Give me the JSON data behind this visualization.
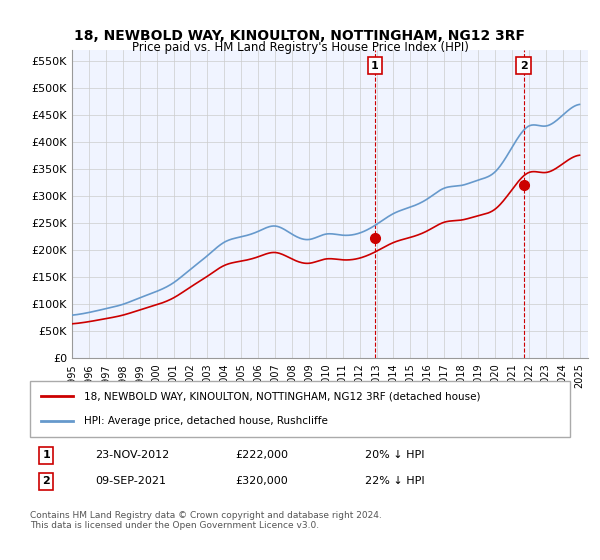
{
  "title": "18, NEWBOLD WAY, KINOULTON, NOTTINGHAM, NG12 3RF",
  "subtitle": "Price paid vs. HM Land Registry's House Price Index (HPI)",
  "ylim": [
    0,
    570000
  ],
  "yticks": [
    0,
    50000,
    100000,
    150000,
    200000,
    250000,
    300000,
    350000,
    400000,
    450000,
    500000,
    550000
  ],
  "ytick_labels": [
    "£0",
    "£50K",
    "£100K",
    "£150K",
    "£200K",
    "£250K",
    "£300K",
    "£350K",
    "£400K",
    "£450K",
    "£500K",
    "£550K"
  ],
  "xlim_start": 1995.0,
  "xlim_end": 2025.5,
  "background_color": "#f0f4ff",
  "plot_bg_color": "#f0f4ff",
  "grid_color": "#cccccc",
  "sale1_date": 2012.9,
  "sale1_price": 222000,
  "sale1_label": "1",
  "sale2_date": 2021.69,
  "sale2_price": 320000,
  "sale2_label": "2",
  "legend_line1": "18, NEWBOLD WAY, KINOULTON, NOTTINGHAM, NG12 3RF (detached house)",
  "legend_line2": "HPI: Average price, detached house, Rushcliffe",
  "annotation1_date": "23-NOV-2012",
  "annotation1_price": "£222,000",
  "annotation1_pct": "20% ↓ HPI",
  "annotation2_date": "09-SEP-2021",
  "annotation2_price": "£320,000",
  "annotation2_pct": "22% ↓ HPI",
  "footer": "Contains HM Land Registry data © Crown copyright and database right 2024.\nThis data is licensed under the Open Government Licence v3.0.",
  "sale_color": "#cc0000",
  "hpi_color": "#6699cc",
  "marker_color": "#cc0000",
  "vline_color": "#cc0000"
}
